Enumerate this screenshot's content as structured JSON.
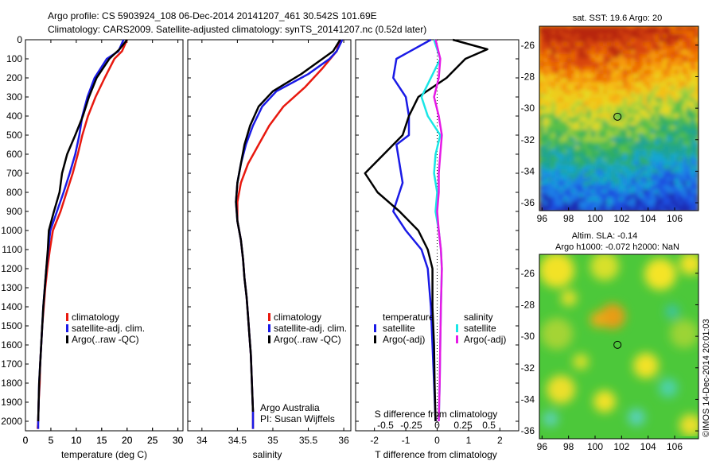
{
  "header": {
    "line1": "Argo profile: CS 5903924_108 06-Dec-2014 20141207_461 30.542S 101.69E",
    "line2": "Climatology: CARS2009. Satellite-adjusted climatology: synTS_20141207.nc (0.52d later)"
  },
  "colors": {
    "climatology": "#e8190f",
    "satellite": "#1a1ae6",
    "argo": "#000000",
    "cyan": "#19e6e6",
    "magenta": "#e619e6"
  },
  "chart_data": [
    {
      "type": "line",
      "id": "temperature",
      "xlabel": "temperature (deg C)",
      "xlim": [
        0,
        31
      ],
      "ylim": [
        2050,
        0
      ],
      "y_reversed": true,
      "xticks": [
        "0",
        "5",
        "10",
        "15",
        "20",
        "25",
        "30"
      ],
      "xtick_values": [
        0,
        5,
        10,
        15,
        20,
        25,
        30
      ],
      "yticks": [
        "0",
        "100",
        "200",
        "300",
        "400",
        "500",
        "600",
        "700",
        "800",
        "900",
        "1000",
        "1100",
        "1200",
        "1300",
        "1400",
        "1500",
        "1600",
        "1700",
        "1800",
        "1900",
        "2000"
      ],
      "ytick_values": [
        0,
        100,
        200,
        300,
        400,
        500,
        600,
        700,
        800,
        900,
        1000,
        1100,
        1200,
        1300,
        1400,
        1500,
        1600,
        1700,
        1800,
        1900,
        2000
      ],
      "legend": [
        "climatology",
        "satellite-adj. clim.",
        "Argo(..raw -QC)"
      ],
      "series": [
        {
          "name": "climatology",
          "color": "#e8190f",
          "points": [
            [
              20,
              0
            ],
            [
              19,
              60
            ],
            [
              17.5,
              100
            ],
            [
              15.6,
              200
            ],
            [
              13.8,
              300
            ],
            [
              12.3,
              400
            ],
            [
              11.2,
              500
            ],
            [
              10.3,
              600
            ],
            [
              9.3,
              700
            ],
            [
              8.1,
              800
            ],
            [
              6.9,
              900
            ],
            [
              5.4,
              1000
            ],
            [
              4.8,
              1100
            ],
            [
              4.3,
              1200
            ],
            [
              3.9,
              1300
            ],
            [
              3.6,
              1400
            ],
            [
              3.3,
              1500
            ],
            [
              3.1,
              1600
            ],
            [
              2.9,
              1700
            ],
            [
              2.8,
              1800
            ],
            [
              2.6,
              1900
            ],
            [
              2.5,
              2000
            ],
            [
              2.4,
              2040
            ]
          ]
        },
        {
          "name": "satellite-adj. clim.",
          "color": "#1a1ae6",
          "points": [
            [
              19.3,
              0
            ],
            [
              18.3,
              60
            ],
            [
              16,
              100
            ],
            [
              13.6,
              200
            ],
            [
              12.2,
              300
            ],
            [
              11.2,
              400
            ],
            [
              10.6,
              500
            ],
            [
              9.8,
              600
            ],
            [
              8.7,
              700
            ],
            [
              7.5,
              800
            ],
            [
              6.2,
              900
            ],
            [
              4.9,
              1000
            ],
            [
              4.5,
              1100
            ],
            [
              4.1,
              1200
            ],
            [
              3.8,
              1300
            ],
            [
              3.5,
              1400
            ],
            [
              3.3,
              1500
            ],
            [
              3.1,
              1600
            ],
            [
              2.9,
              1700
            ],
            [
              2.7,
              1800
            ],
            [
              2.6,
              1900
            ],
            [
              2.5,
              2000
            ],
            [
              2.5,
              2040
            ]
          ]
        },
        {
          "name": "Argo(..raw -QC)",
          "color": "#000000",
          "points": [
            [
              20,
              0
            ],
            [
              18.5,
              50
            ],
            [
              16.5,
              100
            ],
            [
              14,
              200
            ],
            [
              12.5,
              300
            ],
            [
              11.3,
              400
            ],
            [
              9.8,
              500
            ],
            [
              8.2,
              600
            ],
            [
              7.2,
              700
            ],
            [
              6.7,
              800
            ],
            [
              5.6,
              900
            ],
            [
              4.6,
              1000
            ],
            [
              4.4,
              1100
            ],
            [
              4.1,
              1200
            ],
            [
              3.8,
              1300
            ],
            [
              3.5,
              1400
            ],
            [
              3.3,
              1500
            ],
            [
              3.1,
              1600
            ],
            [
              2.9,
              1700
            ],
            [
              2.7,
              1800
            ],
            [
              2.6,
              1900
            ],
            [
              2.5,
              2000
            ]
          ]
        }
      ]
    },
    {
      "type": "line",
      "id": "salinity",
      "xlabel": "salinity",
      "xlim": [
        33.8,
        36.1
      ],
      "ylim": [
        2050,
        0
      ],
      "y_reversed": true,
      "xticks": [
        "34",
        "34.5",
        "35",
        "35.5",
        "36"
      ],
      "xtick_values": [
        34,
        34.5,
        35,
        35.5,
        36
      ],
      "legend": [
        "climatology",
        "satellite-adj. clim.",
        "Argo(..raw -QC)"
      ],
      "annotations": [
        "Argo Australia",
        "PI: Susan Wijffels"
      ],
      "series": [
        {
          "name": "climatology",
          "color": "#e8190f",
          "points": [
            [
              35.95,
              0
            ],
            [
              35.9,
              60
            ],
            [
              35.7,
              150
            ],
            [
              35.45,
              250
            ],
            [
              35.15,
              350
            ],
            [
              34.95,
              450
            ],
            [
              34.8,
              550
            ],
            [
              34.65,
              650
            ],
            [
              34.55,
              750
            ],
            [
              34.5,
              850
            ],
            [
              34.5,
              950
            ],
            [
              34.55,
              1050
            ],
            [
              34.58,
              1150
            ],
            [
              34.6,
              1250
            ],
            [
              34.63,
              1350
            ],
            [
              34.65,
              1450
            ],
            [
              34.67,
              1550
            ],
            [
              34.69,
              1650
            ],
            [
              34.7,
              1750
            ],
            [
              34.71,
              1850
            ],
            [
              34.72,
              1950
            ],
            [
              34.72,
              2040
            ]
          ]
        },
        {
          "name": "satellite-adj. clim.",
          "color": "#1a1ae6",
          "points": [
            [
              35.98,
              0
            ],
            [
              35.9,
              60
            ],
            [
              35.8,
              100
            ],
            [
              35.5,
              180
            ],
            [
              35.05,
              270
            ],
            [
              34.85,
              350
            ],
            [
              34.72,
              450
            ],
            [
              34.62,
              550
            ],
            [
              34.55,
              650
            ],
            [
              34.5,
              750
            ],
            [
              34.48,
              850
            ],
            [
              34.5,
              950
            ],
            [
              34.55,
              1050
            ],
            [
              34.58,
              1150
            ],
            [
              34.6,
              1250
            ],
            [
              34.63,
              1350
            ],
            [
              34.65,
              1450
            ],
            [
              34.67,
              1550
            ],
            [
              34.69,
              1650
            ],
            [
              34.7,
              1750
            ],
            [
              34.71,
              1850
            ],
            [
              34.72,
              1950
            ],
            [
              34.72,
              2040
            ]
          ]
        },
        {
          "name": "Argo(..raw -QC)",
          "color": "#000000",
          "points": [
            [
              35.95,
              0
            ],
            [
              35.85,
              60
            ],
            [
              35.7,
              100
            ],
            [
              35.4,
              180
            ],
            [
              35.0,
              270
            ],
            [
              34.8,
              350
            ],
            [
              34.68,
              450
            ],
            [
              34.6,
              550
            ],
            [
              34.55,
              650
            ],
            [
              34.5,
              750
            ],
            [
              34.48,
              850
            ],
            [
              34.5,
              950
            ],
            [
              34.55,
              1050
            ],
            [
              34.58,
              1150
            ],
            [
              34.6,
              1250
            ],
            [
              34.63,
              1350
            ],
            [
              34.65,
              1450
            ],
            [
              34.67,
              1550
            ],
            [
              34.69,
              1650
            ],
            [
              34.7,
              1750
            ],
            [
              34.71,
              1850
            ],
            [
              34.72,
              1950
            ]
          ]
        }
      ]
    },
    {
      "type": "line",
      "id": "difference",
      "xlabel": "T difference from climatology",
      "xlabel_top": "S difference from climatology",
      "xlim": [
        -2.6,
        2.6
      ],
      "ylim": [
        2050,
        0
      ],
      "y_reversed": true,
      "xticks_T": [
        "-2",
        "-1",
        "0",
        "1",
        "2"
      ],
      "xticks_T_values": [
        -2,
        -1,
        0,
        1,
        2
      ],
      "xticks_S": [
        "-0.5",
        "-0.25",
        "0",
        "0.25",
        "0.5"
      ],
      "xticks_S_values": [
        -0.5,
        -0.25,
        0,
        0.25,
        0.5
      ],
      "legend_groups": [
        {
          "title": "temperature",
          "items": [
            "satellite",
            "Argo(-adj)"
          ]
        },
        {
          "title": "salinity",
          "items": [
            "satellite",
            "Argo(-adj)"
          ]
        }
      ],
      "series": [
        {
          "name": "temperature satellite",
          "color": "#1a1ae6",
          "points": [
            [
              -0.2,
              0
            ],
            [
              -1.3,
              100
            ],
            [
              -1.4,
              200
            ],
            [
              -1.0,
              300
            ],
            [
              -0.9,
              400
            ],
            [
              -0.9,
              500
            ],
            [
              -1.3,
              550
            ],
            [
              -1.2,
              650
            ],
            [
              -1.1,
              750
            ],
            [
              -1.4,
              900
            ],
            [
              -1.0,
              1000
            ],
            [
              -0.5,
              1100
            ],
            [
              -0.3,
              1200
            ],
            [
              -0.2,
              1400
            ],
            [
              -0.15,
              1600
            ],
            [
              -0.1,
              1800
            ],
            [
              -0.05,
              2000
            ]
          ]
        },
        {
          "name": "temperature Argo(-adj)",
          "color": "#000000",
          "points": [
            [
              0.5,
              0
            ],
            [
              1.6,
              50
            ],
            [
              0.9,
              100
            ],
            [
              0.3,
              200
            ],
            [
              -0.6,
              300
            ],
            [
              -0.9,
              400
            ],
            [
              -1.1,
              500
            ],
            [
              -1.7,
              600
            ],
            [
              -2.3,
              700
            ],
            [
              -1.9,
              800
            ],
            [
              -1.2,
              900
            ],
            [
              -0.6,
              1000
            ],
            [
              -0.3,
              1100
            ],
            [
              -0.15,
              1200
            ],
            [
              -0.15,
              1400
            ],
            [
              -0.1,
              1600
            ],
            [
              -0.08,
              1800
            ],
            [
              -0.05,
              2000
            ]
          ]
        },
        {
          "name": "salinity satellite",
          "color": "#19e6e6",
          "points": [
            [
              -0.1,
              0
            ],
            [
              0.1,
              100
            ],
            [
              -0.2,
              200
            ],
            [
              -0.5,
              300
            ],
            [
              -0.3,
              400
            ],
            [
              0.1,
              500
            ],
            [
              -0.05,
              600
            ],
            [
              -0.1,
              700
            ],
            [
              0.0,
              800
            ],
            [
              -0.05,
              900
            ],
            [
              0.05,
              1000
            ],
            [
              0.12,
              1100
            ],
            [
              0.15,
              1200
            ],
            [
              0.12,
              1400
            ],
            [
              0.1,
              1600
            ],
            [
              0.08,
              1800
            ],
            [
              0.05,
              2000
            ]
          ]
        },
        {
          "name": "salinity Argo(-adj)",
          "color": "#e619e6",
          "points": [
            [
              -0.05,
              0
            ],
            [
              0.1,
              100
            ],
            [
              0.05,
              200
            ],
            [
              -0.1,
              300
            ],
            [
              0.05,
              400
            ],
            [
              0.15,
              500
            ],
            [
              0.1,
              600
            ],
            [
              0.05,
              700
            ],
            [
              0.05,
              800
            ],
            [
              0.0,
              900
            ],
            [
              0.05,
              1000
            ],
            [
              0.12,
              1100
            ],
            [
              0.15,
              1200
            ],
            [
              0.12,
              1400
            ],
            [
              0.1,
              1600
            ],
            [
              0.08,
              1800
            ],
            [
              0.05,
              2000
            ]
          ]
        }
      ]
    },
    {
      "type": "heatmap",
      "id": "sst-map",
      "title": "sat. SST: 19.6  Argo: 20",
      "xticks": [
        "96",
        "98",
        "100",
        "102",
        "104",
        "106"
      ],
      "xtick_values": [
        96,
        98,
        100,
        102,
        104,
        106
      ],
      "yticks": [
        "-26",
        "-28",
        "-30",
        "-32",
        "-34",
        "-36"
      ],
      "ytick_values": [
        -26,
        -28,
        -30,
        -32,
        -34,
        -36
      ],
      "xlim": [
        95.8,
        107.8
      ],
      "ylim": [
        -36.5,
        -24.8
      ],
      "marker": [
        101.69,
        -30.54
      ]
    },
    {
      "type": "heatmap",
      "id": "sla-map",
      "title": "Altim. SLA: -0.14",
      "subtitle": "Argo h1000: -0.072  h2000: NaN",
      "xticks": [
        "96",
        "98",
        "100",
        "102",
        "104",
        "106"
      ],
      "xtick_values": [
        96,
        98,
        100,
        102,
        104,
        106
      ],
      "yticks": [
        "-26",
        "-28",
        "-30",
        "-32",
        "-34",
        "-36"
      ],
      "ytick_values": [
        -26,
        -28,
        -30,
        -32,
        -34,
        -36
      ],
      "xlim": [
        95.8,
        107.8
      ],
      "ylim": [
        -36.5,
        -24.8
      ],
      "marker": [
        101.69,
        -30.54
      ]
    }
  ],
  "footer_vertical": "©IMOS 14-Dec-2014 20:01:03"
}
